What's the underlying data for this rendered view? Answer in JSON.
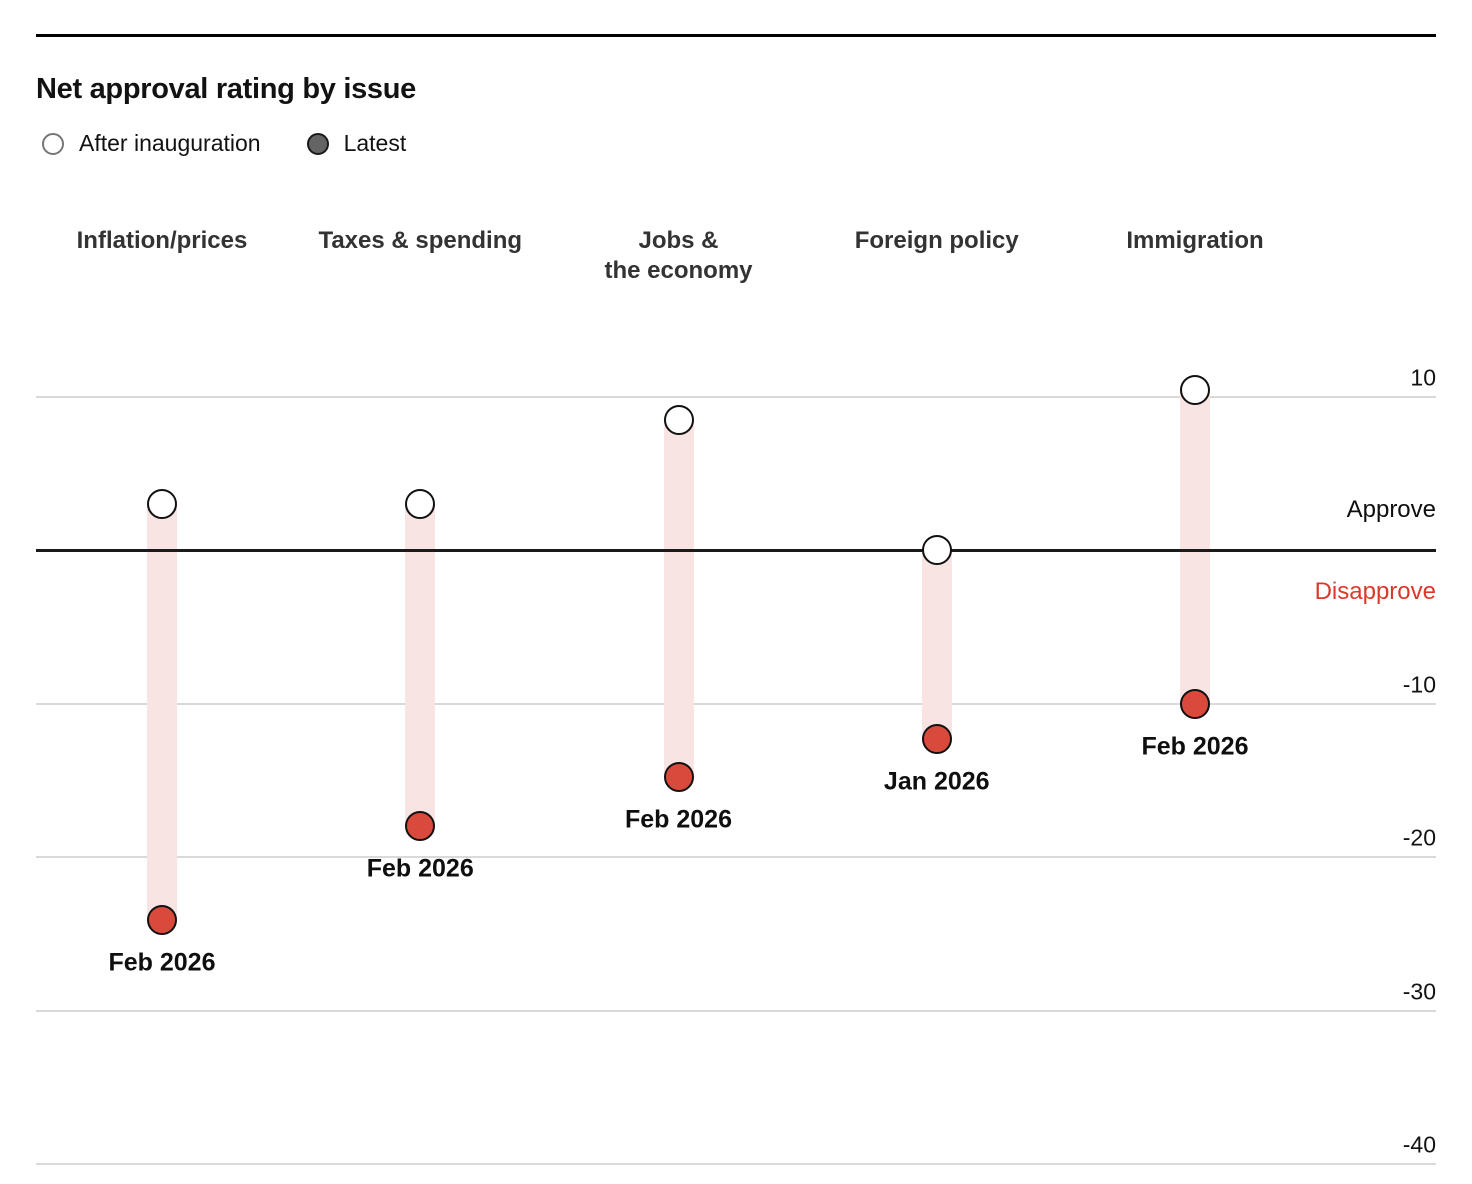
{
  "header": {
    "title": "Net approval rating by issue",
    "legend": [
      {
        "key": "after",
        "label": "After inauguration"
      },
      {
        "key": "latest",
        "label": "Latest"
      }
    ]
  },
  "chart_data": {
    "type": "scatter",
    "variant": "dumbbell-range",
    "title": "Net approval rating by issue",
    "categories": [
      "Inflation/prices",
      "Taxes & spending",
      "Jobs &\nthe economy",
      "Foreign policy",
      "Immigration"
    ],
    "series": [
      {
        "name": "After inauguration",
        "values": [
          3,
          3,
          8.5,
          0,
          10.4
        ]
      },
      {
        "name": "Latest",
        "values": [
          -24.1,
          -18,
          -14.8,
          -12.3,
          -10
        ]
      }
    ],
    "latest_date_labels": [
      "Feb 2026",
      "Feb 2026",
      "Feb 2026",
      "Jan 2026",
      "Feb 2026"
    ],
    "yticks": [
      10,
      -10,
      -20,
      -30,
      -40
    ],
    "ytick_labels": [
      "10",
      "-10",
      "-20",
      "-30",
      "-40"
    ],
    "ylim": [
      -43,
      14
    ],
    "zero_line_labels": {
      "above": "Approve",
      "below": "Disapprove"
    },
    "grid": "horizontal",
    "legend_position": "top-left"
  },
  "colors": {
    "latest_dot_red": "#d94a3c",
    "band_pink": "#f8e4e2",
    "disapprove_text_red": "#d93a2b",
    "after_dot_fill": "#ffffff",
    "dot_stroke": "#111111",
    "legend_latest_fill": "#646464",
    "gridline_gray": "#d9d9d9",
    "zero_line": "#1a1a1a",
    "text": "#121212"
  }
}
